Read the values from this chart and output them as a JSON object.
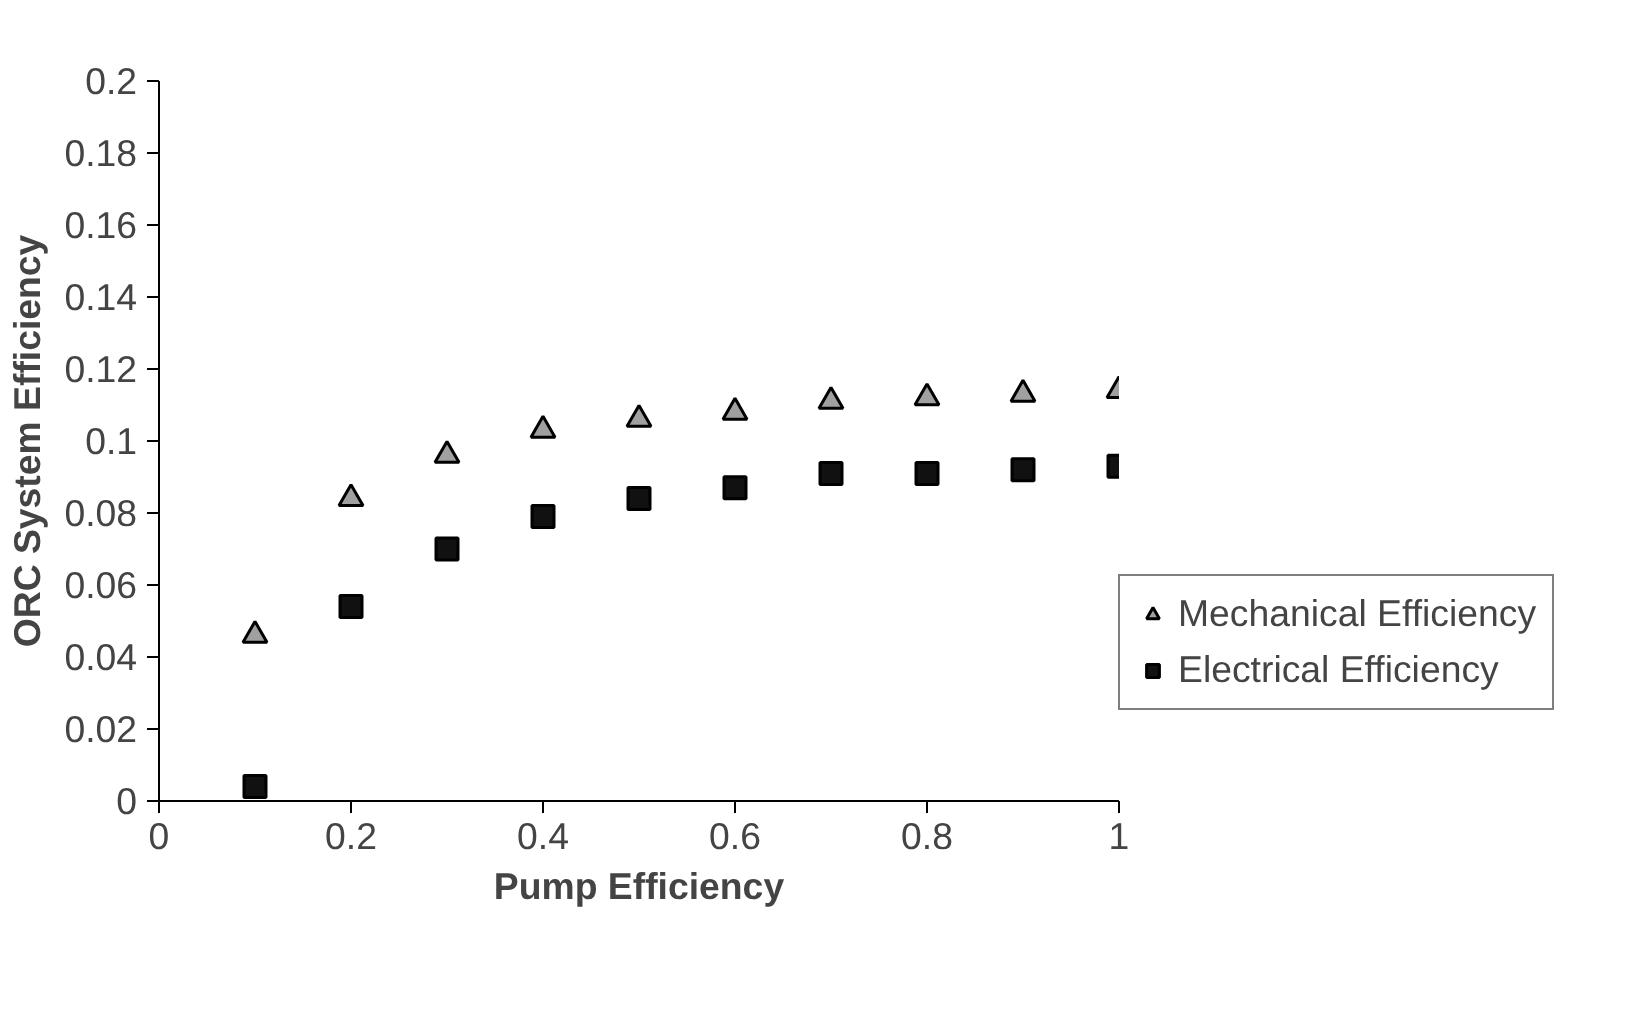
{
  "chart_data": {
    "type": "scatter",
    "xlabel": "Pump Efficiency",
    "ylabel": "ORC System Efficiency",
    "x": [
      0.1,
      0.2,
      0.3,
      0.4,
      0.5,
      0.6,
      0.7,
      0.8,
      0.9,
      1.0
    ],
    "series": [
      {
        "name": "Mechanical Efficiency",
        "color": "#a0a0a0",
        "marker": "triangle",
        "values": [
          0.046,
          0.084,
          0.096,
          0.103,
          0.106,
          0.108,
          0.111,
          0.112,
          0.113,
          0.114
        ]
      },
      {
        "name": "Electrical Efficiency",
        "color": "#111111",
        "marker": "square",
        "values": [
          0.004,
          0.054,
          0.07,
          0.079,
          0.084,
          0.087,
          0.091,
          0.091,
          0.092,
          0.093
        ]
      }
    ],
    "xlim": [
      0,
      1
    ],
    "xticks": [
      0,
      0.2,
      0.4,
      0.6,
      0.8,
      1
    ],
    "ylim": [
      0,
      0.2
    ],
    "yticks": [
      0,
      0.02,
      0.04,
      0.06,
      0.08,
      0.1,
      0.12,
      0.14,
      0.16,
      0.18,
      0.2
    ],
    "grid": false,
    "legend": "right"
  }
}
